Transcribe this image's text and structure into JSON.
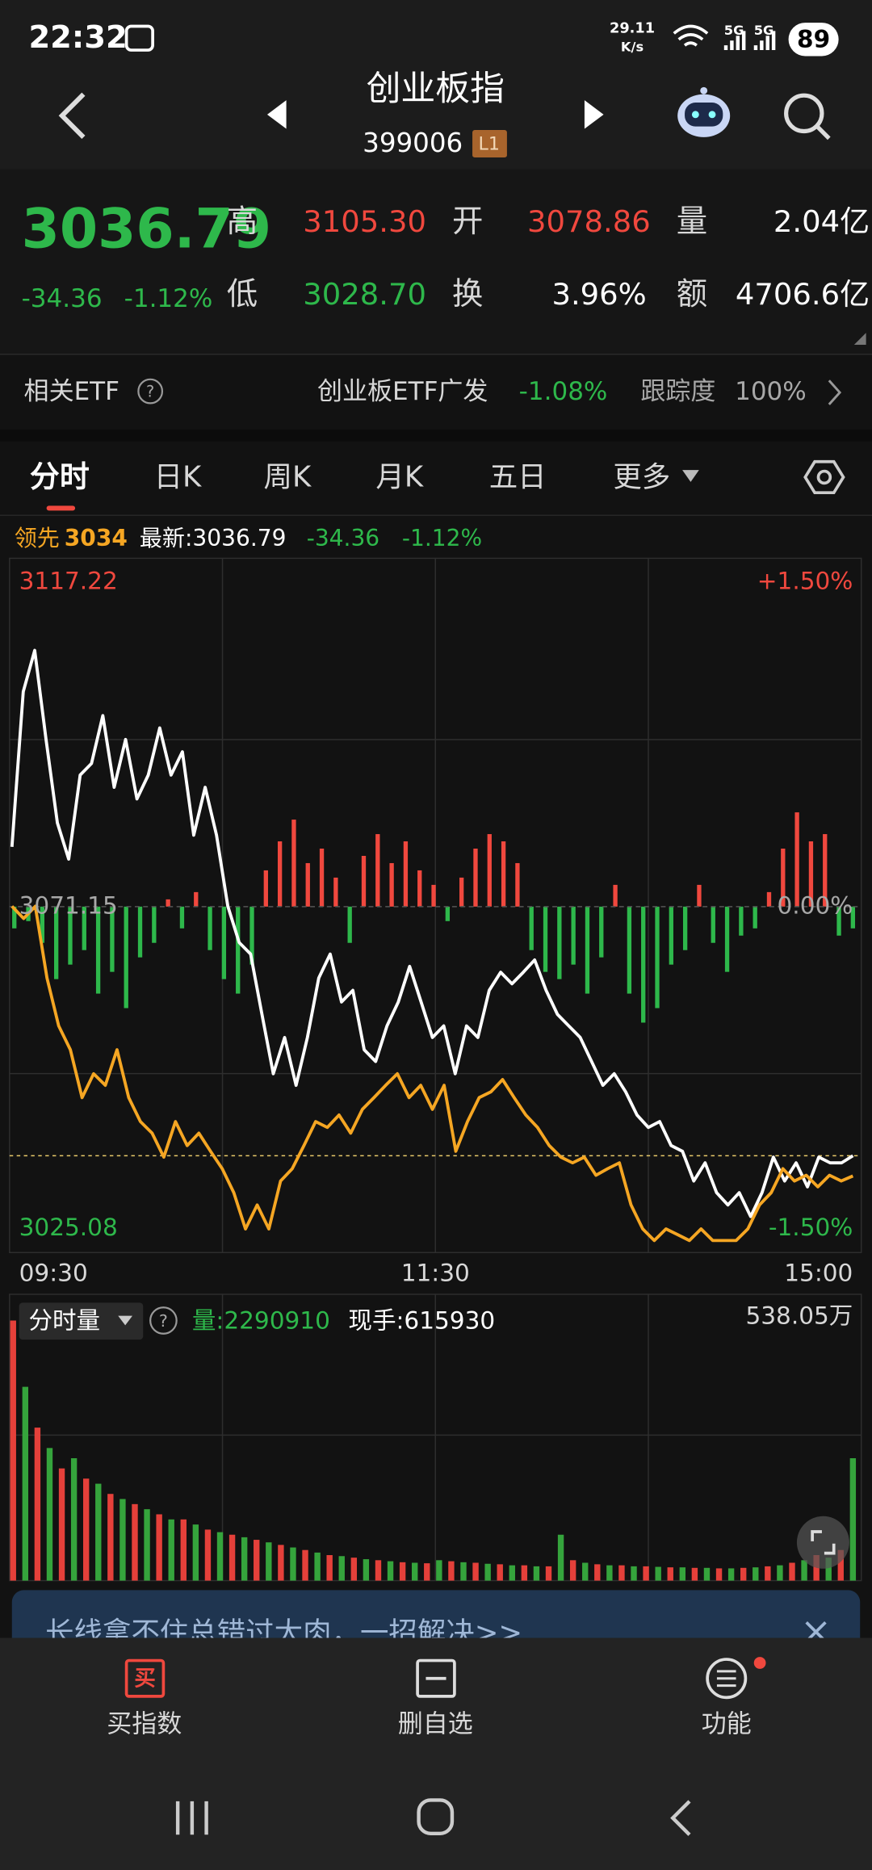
{
  "status_bar": {
    "time": "22:32",
    "speed_value": "29.11",
    "speed_unit": "K/s",
    "network": [
      "5G",
      "5G"
    ],
    "battery": "89"
  },
  "header": {
    "title": "创业板指",
    "code": "399006",
    "level": "L1"
  },
  "quote": {
    "price": "3036.79",
    "change": "-34.36",
    "change_pct": "-1.12%",
    "high_label": "高",
    "high": "3105.30",
    "open_label": "开",
    "open": "3078.86",
    "volume_label": "量",
    "volume": "2.04亿",
    "low_label": "低",
    "low": "3028.70",
    "turnover_label": "换",
    "turnover": "3.96%",
    "amount_label": "额",
    "amount": "4706.6亿"
  },
  "etf": {
    "label": "相关ETF",
    "help": "?",
    "name": "创业板ETF广发",
    "change": "-1.08%",
    "tracking_label": "跟踪度",
    "tracking": "100%"
  },
  "tabs": [
    "分时",
    "日K",
    "周K",
    "月K",
    "五日",
    "更多"
  ],
  "info_bar": {
    "leader_label": "领先",
    "leader": "3034",
    "latest": "最新:3036.79",
    "change": "-34.36",
    "change_pct": "-1.12%"
  },
  "price_chart": {
    "type": "line",
    "ylim": [
      3025.08,
      3117.22
    ],
    "yticks": [
      3117.22,
      3071.15,
      3025.08
    ],
    "pct_labels": [
      "+1.50%",
      "0.00%",
      "-1.50%"
    ],
    "x_labels": [
      "09:30",
      "11:30",
      "15:00"
    ],
    "series": [
      {
        "color": "#ffffff",
        "values": [
          3079.4,
          3100.8,
          3106.5,
          3094.2,
          3082.7,
          3077.7,
          3089.3,
          3090.9,
          3097.5,
          3087.6,
          3094.2,
          3086.0,
          3089.3,
          3095.8,
          3089.3,
          3092.5,
          3081.0,
          3087.6,
          3081.0,
          3071.2,
          3066.2,
          3064.6,
          3056.3,
          3048.1,
          3053.1,
          3046.5,
          3053.1,
          3061.3,
          3064.6,
          3058.0,
          3059.6,
          3051.4,
          3049.8,
          3054.7,
          3058.0,
          3062.9,
          3058.0,
          3053.1,
          3054.7,
          3048.1,
          3054.7,
          3053.1,
          3059.6,
          3062.1,
          3060.5,
          3062.1,
          3063.8,
          3059.6,
          3056.3,
          3054.7,
          3053.1,
          3049.8,
          3046.5,
          3048.1,
          3045.6,
          3042.4,
          3040.7,
          3041.5,
          3038.2,
          3037.4,
          3033.3,
          3035.8,
          3031.7,
          3030.0,
          3031.7,
          3028.4,
          3031.7,
          3036.6,
          3033.3,
          3035.8,
          3032.5,
          3036.6,
          3035.8,
          3035.8,
          3036.8
        ]
      },
      {
        "color": "#f5a623",
        "values": [
          3071.2,
          3069.5,
          3071.2,
          3061.3,
          3054.7,
          3051.4,
          3044.8,
          3048.1,
          3046.5,
          3051.4,
          3044.8,
          3041.5,
          3039.9,
          3036.6,
          3041.5,
          3038.2,
          3039.9,
          3037.4,
          3035.0,
          3031.7,
          3026.7,
          3030.0,
          3026.7,
          3033.3,
          3035.0,
          3038.2,
          3041.5,
          3040.7,
          3042.4,
          3039.9,
          3043.2,
          3044.8,
          3046.5,
          3048.1,
          3044.8,
          3046.5,
          3043.2,
          3046.5,
          3037.4,
          3041.5,
          3044.8,
          3045.6,
          3047.3,
          3044.8,
          3042.4,
          3040.7,
          3038.2,
          3036.6,
          3035.8,
          3036.6,
          3034.1,
          3035.0,
          3035.8,
          3030.0,
          3026.7,
          3025.1,
          3026.7,
          3025.9,
          3025.1,
          3026.7,
          3025.1,
          3025.1,
          3025.1,
          3026.7,
          3030.0,
          3031.7,
          3035.0,
          3033.3,
          3034.1,
          3032.5,
          3034.1,
          3033.3,
          3034.0
        ]
      }
    ],
    "bars": {
      "up_color": "#f0483e",
      "down_color": "#2eb84b",
      "values": [
        -3,
        -2,
        -5,
        -10,
        -8,
        -6,
        -12,
        -9,
        -14,
        -7,
        -5,
        1,
        -3,
        2,
        -6,
        -10,
        -12,
        -8,
        5,
        9,
        12,
        6,
        8,
        4,
        -5,
        7,
        10,
        6,
        9,
        5,
        3,
        -2,
        4,
        8,
        10,
        9,
        6,
        -6,
        -9,
        -10,
        -8,
        -12,
        -7,
        3,
        -12,
        -16,
        -14,
        -8,
        -6,
        3,
        -5,
        -9,
        -4,
        -3,
        2,
        8,
        13,
        9,
        10,
        -4,
        -3
      ]
    }
  },
  "volume_chart": {
    "type": "bar",
    "label": "分时量",
    "help": "?",
    "volume": "量:2290910",
    "hand": "现手:615930",
    "max_label": "538.05万",
    "ylim": [
      0,
      538.05
    ],
    "colors": [
      "#e5403a",
      "#35a43c"
    ],
    "values": [
      510,
      380,
      300,
      260,
      220,
      240,
      200,
      190,
      170,
      160,
      150,
      140,
      130,
      120,
      120,
      110,
      100,
      95,
      90,
      85,
      80,
      75,
      70,
      65,
      60,
      55,
      50,
      48,
      45,
      42,
      40,
      38,
      36,
      35,
      34,
      40,
      38,
      36,
      35,
      33,
      32,
      30,
      30,
      28,
      28,
      90,
      40,
      35,
      32,
      30,
      30,
      28,
      28,
      27,
      26,
      26,
      25,
      25,
      24,
      24,
      25,
      26,
      28,
      30,
      35,
      40,
      50,
      45,
      60,
      240
    ]
  },
  "banner": {
    "text": "长线拿不住总错过大肉，一招解决>>"
  },
  "nav": {
    "buy_icon": "买",
    "items": [
      "买指数",
      "删自选",
      "功能"
    ]
  }
}
